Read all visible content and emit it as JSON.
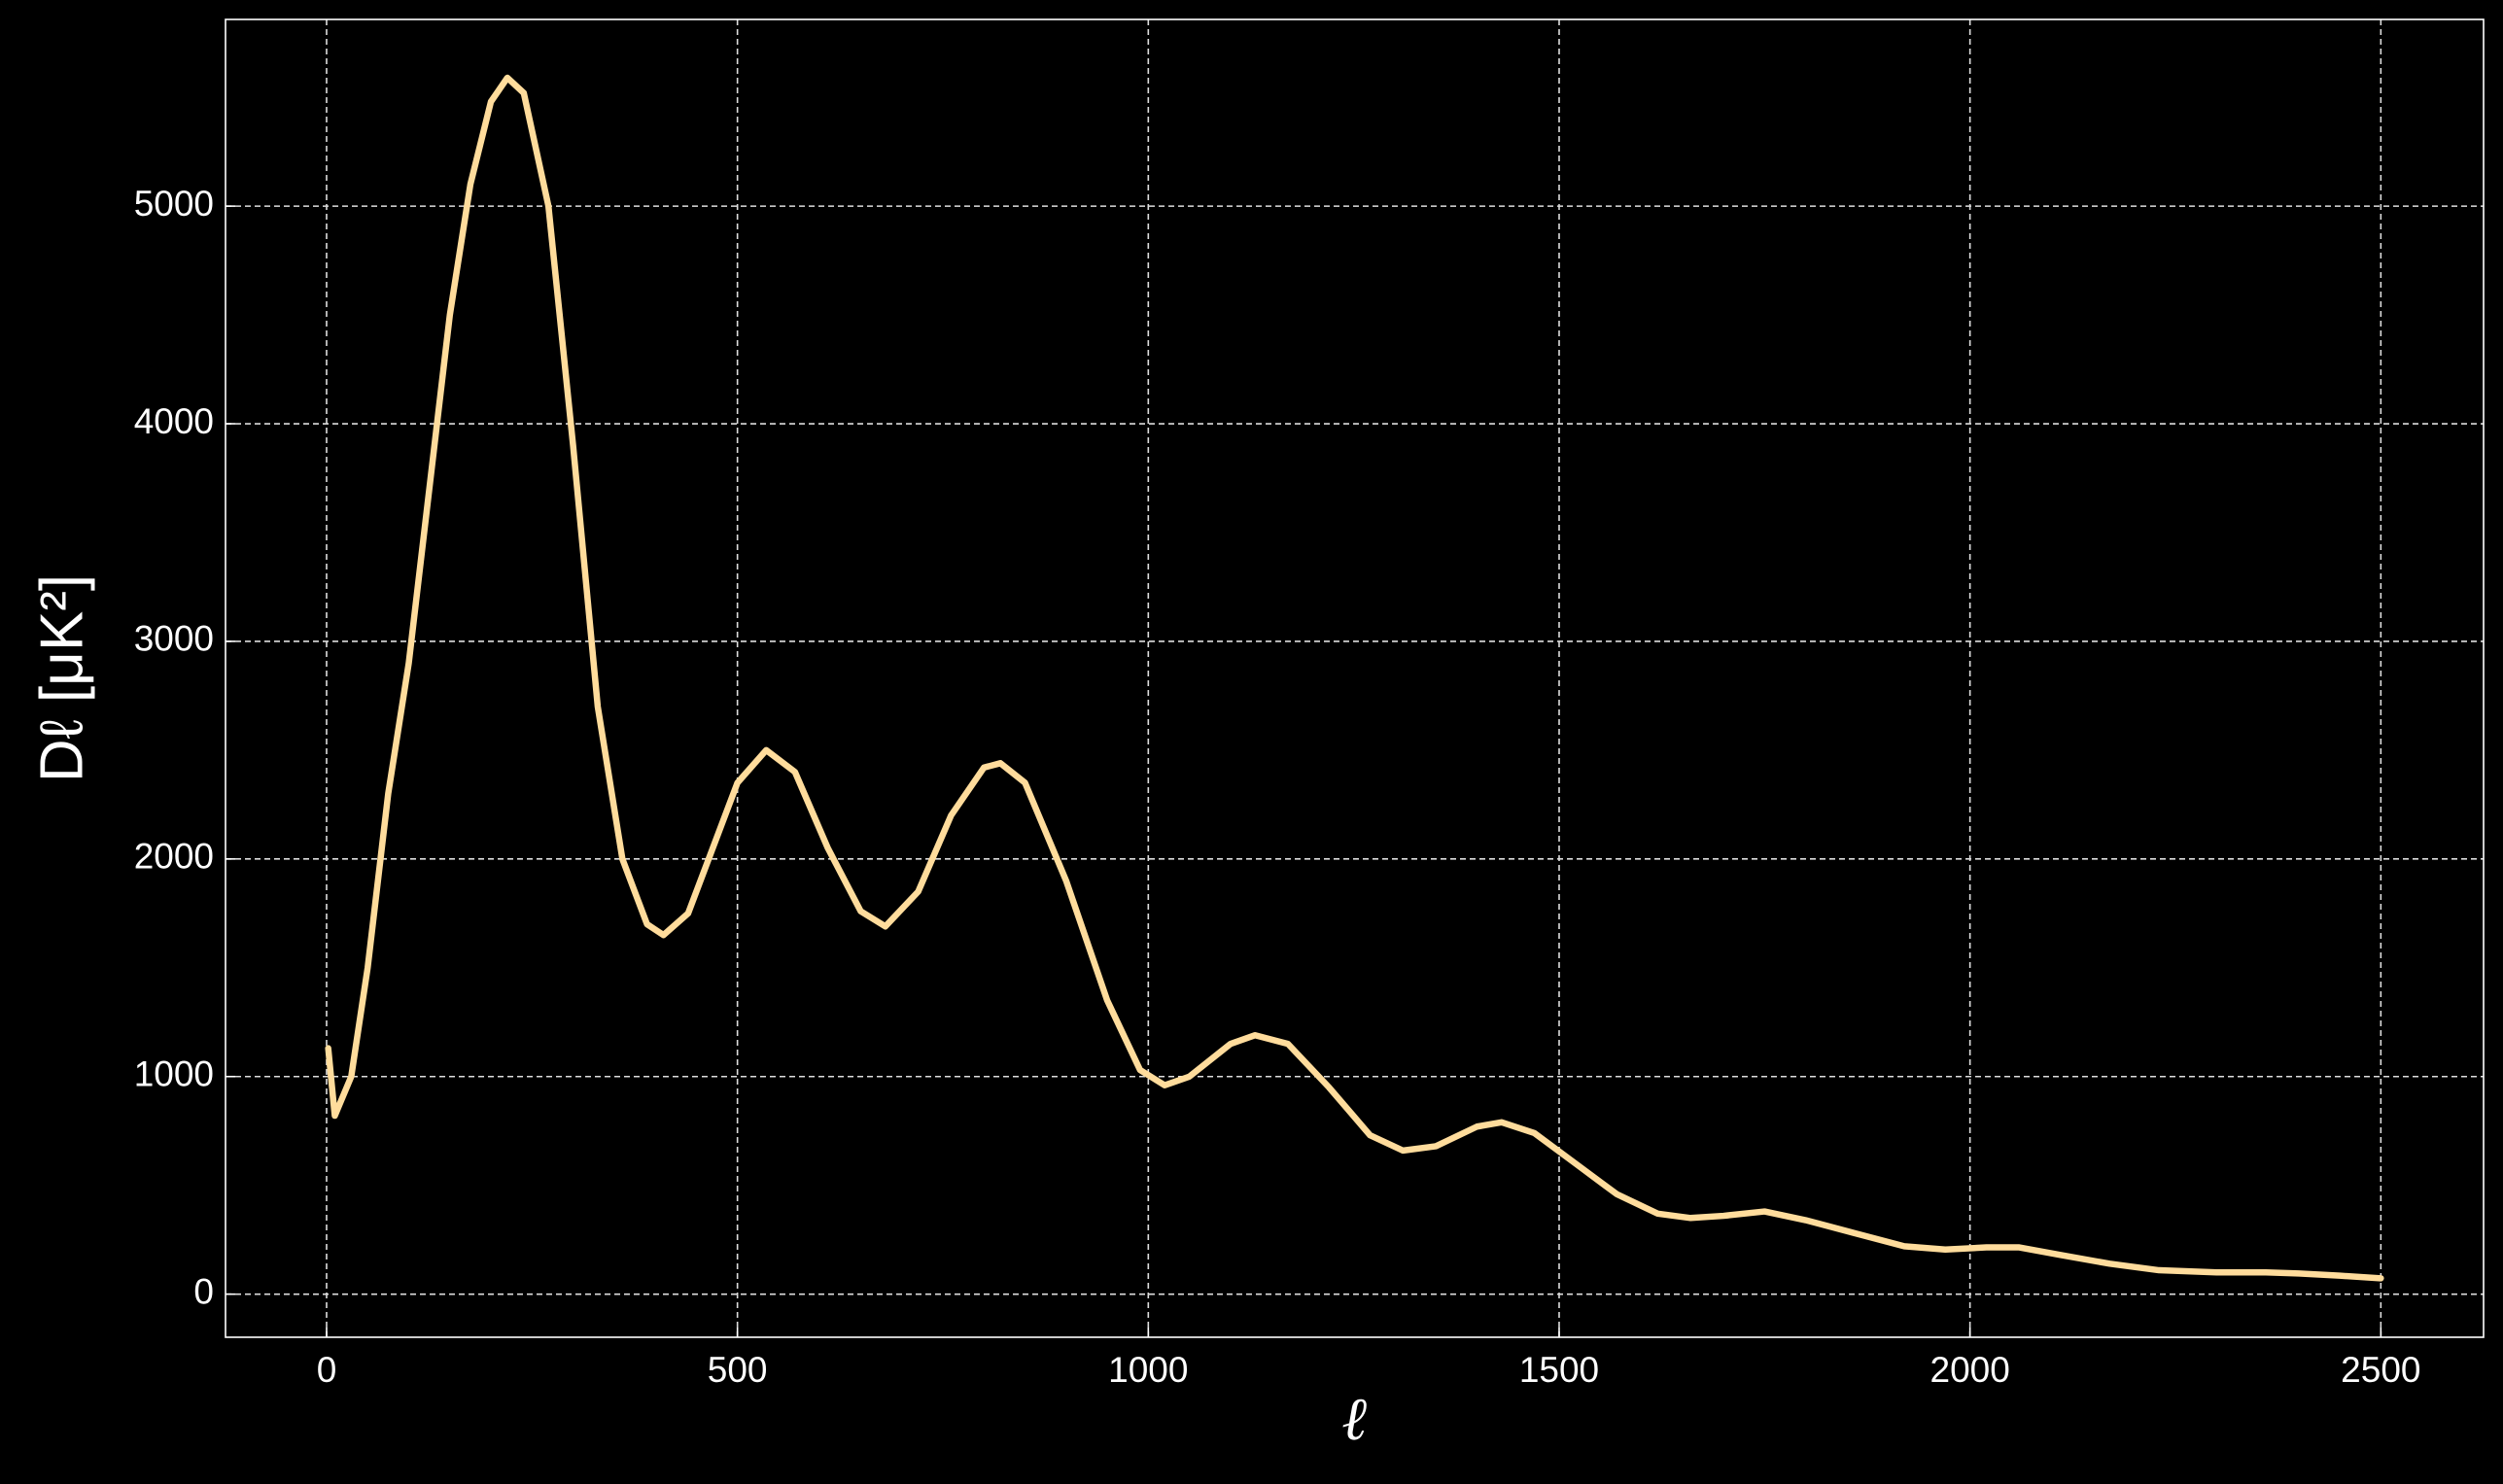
{
  "chart_data": {
    "type": "line",
    "xlabel": "ℓ",
    "ylabel": "Dℓ [μK²]",
    "x": [
      2,
      10,
      30,
      50,
      75,
      100,
      125,
      150,
      175,
      200,
      220,
      240,
      270,
      300,
      330,
      360,
      390,
      410,
      440,
      470,
      500,
      535,
      570,
      610,
      650,
      680,
      720,
      760,
      800,
      820,
      850,
      900,
      950,
      990,
      1020,
      1050,
      1100,
      1130,
      1170,
      1220,
      1270,
      1310,
      1350,
      1400,
      1430,
      1470,
      1520,
      1570,
      1620,
      1660,
      1700,
      1750,
      1800,
      1860,
      1920,
      1970,
      2020,
      2060,
      2110,
      2170,
      2230,
      2300,
      2360,
      2400,
      2450,
      2500
    ],
    "series": [
      {
        "name": "Dℓ",
        "color": "#ffdc9c",
        "values": [
          1130,
          820,
          1000,
          1500,
          2300,
          2900,
          3700,
          4500,
          5100,
          5480,
          5590,
          5520,
          5000,
          3900,
          2700,
          2000,
          1700,
          1650,
          1750,
          2050,
          2350,
          2500,
          2400,
          2050,
          1760,
          1690,
          1850,
          2200,
          2420,
          2440,
          2350,
          1900,
          1350,
          1030,
          960,
          1000,
          1150,
          1190,
          1150,
          950,
          730,
          660,
          680,
          770,
          790,
          740,
          600,
          460,
          370,
          350,
          360,
          380,
          340,
          280,
          220,
          205,
          215,
          215,
          180,
          140,
          110,
          100,
          100,
          95,
          85,
          73
        ]
      }
    ],
    "xlim": [
      -123,
      2625
    ],
    "ylim": [
      -198,
      5858
    ],
    "xticks": [
      0,
      500,
      1000,
      1500,
      2000,
      2500
    ],
    "yticks": [
      0,
      1000,
      2000,
      3000,
      4000,
      5000
    ],
    "grid": true
  }
}
